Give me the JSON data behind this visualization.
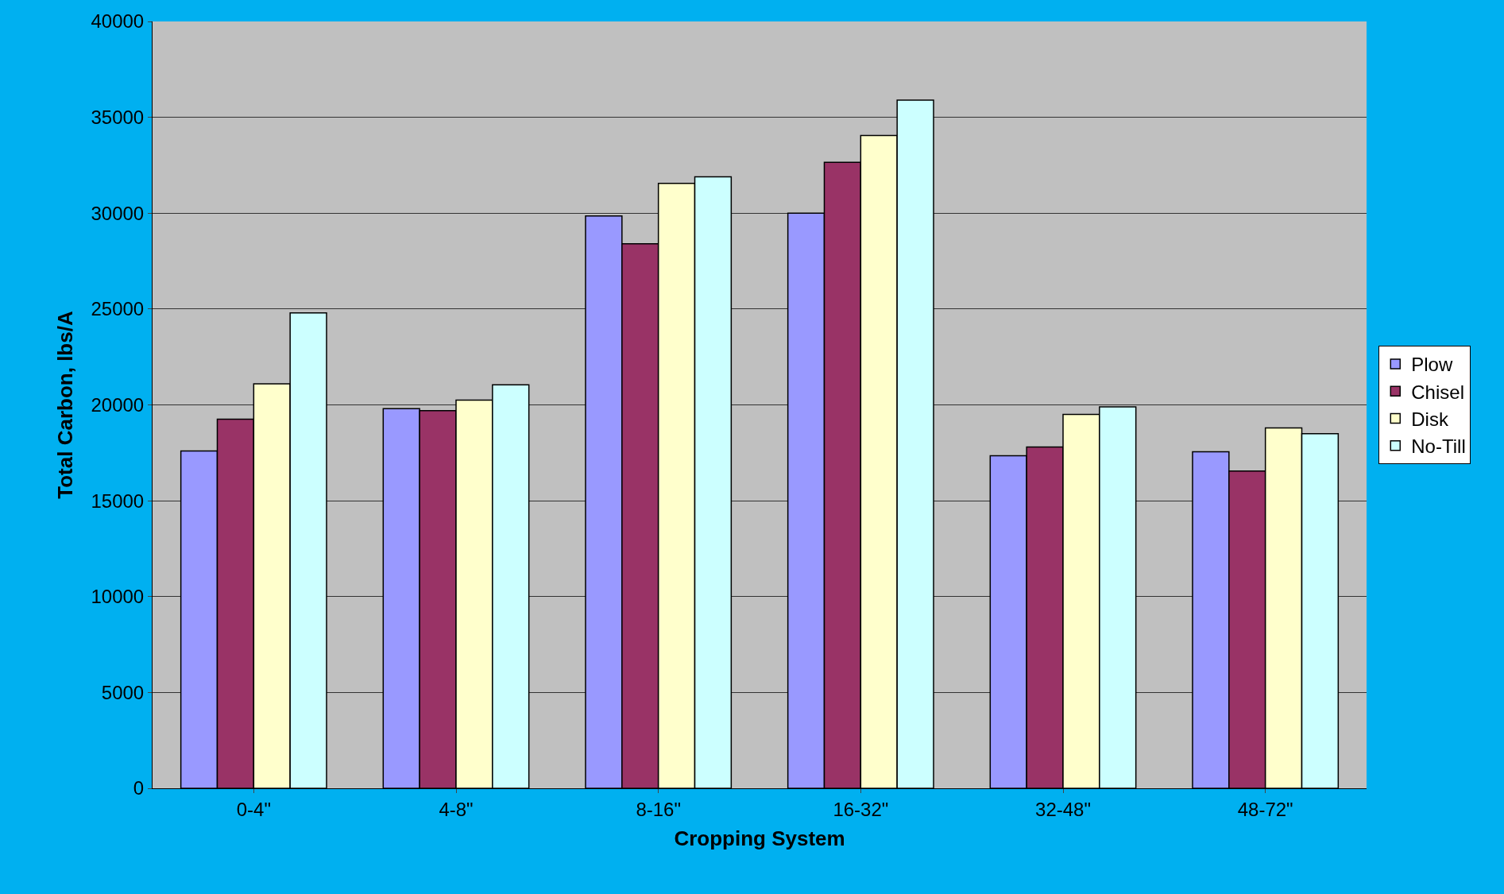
{
  "chart_data": {
    "type": "bar",
    "xlabel": "Cropping System",
    "ylabel": "Total Carbon, lbs/A",
    "categories": [
      "0-4\"",
      "4-8\"",
      "8-16\"",
      "16-32\"",
      "32-48\"",
      "48-72\""
    ],
    "series": [
      {
        "name": "Plow",
        "color": "#9999ff",
        "values": [
          17600,
          19800,
          29850,
          30000,
          17350,
          17550
        ]
      },
      {
        "name": "Chisel",
        "color": "#993366",
        "values": [
          19250,
          19700,
          28400,
          32650,
          17800,
          16550
        ]
      },
      {
        "name": "Disk",
        "color": "#ffffcc",
        "values": [
          21100,
          20250,
          31550,
          34050,
          19500,
          18800
        ]
      },
      {
        "name": "No-Till",
        "color": "#ccffff",
        "values": [
          24800,
          21050,
          31900,
          35900,
          19900,
          18500
        ]
      }
    ],
    "ylim": [
      0,
      40000
    ],
    "yticks": [
      0,
      5000,
      10000,
      15000,
      20000,
      25000,
      30000,
      35000,
      40000
    ],
    "grid": "y",
    "legend": "right"
  }
}
